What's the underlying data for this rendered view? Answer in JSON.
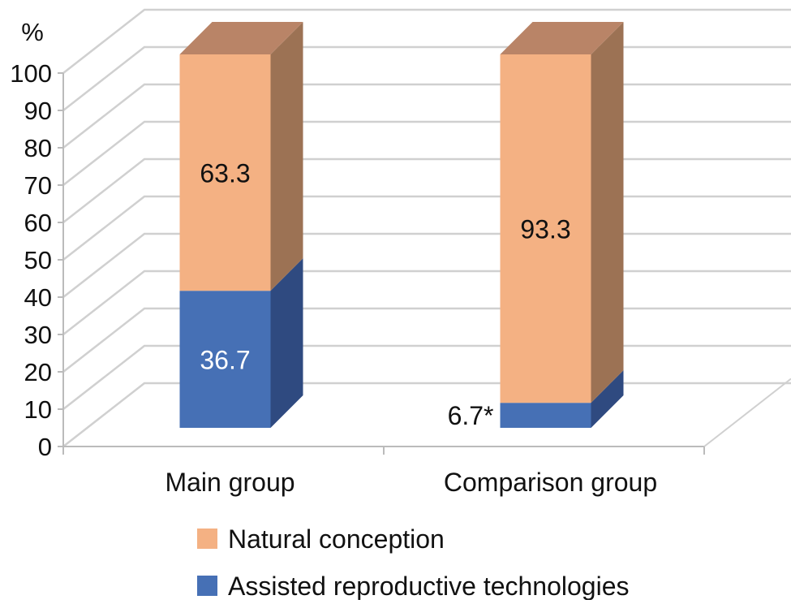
{
  "chart_data": {
    "type": "bar",
    "subtype": "stacked-3d",
    "title": "",
    "ylabel": "%",
    "xlabel": "",
    "ylim": [
      0,
      100
    ],
    "yticks": [
      "0",
      "10",
      "20",
      "30",
      "40",
      "50",
      "60",
      "70",
      "80",
      "90",
      "100"
    ],
    "categories": [
      "Main group",
      "Comparison group"
    ],
    "series": [
      {
        "name": "Assisted reproductive technologies",
        "values": [
          36.7,
          6.7
        ],
        "labels": [
          "36.7",
          "6.7*"
        ],
        "color": "#4670B5",
        "side": "#2F4A80"
      },
      {
        "name": "Natural conception",
        "values": [
          63.3,
          93.3
        ],
        "labels": [
          "63.3",
          "93.3"
        ],
        "color": "#F4B183",
        "side": "#9C7254",
        "top": "#B98467"
      }
    ],
    "legend": [
      "Natural conception",
      "Assisted reproductive technologies"
    ],
    "legend_position": "bottom",
    "grid": true
  }
}
